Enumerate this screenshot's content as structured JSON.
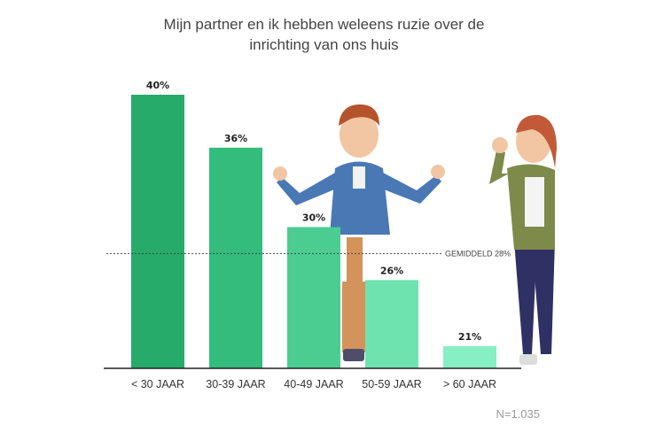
{
  "chart_data": {
    "type": "bar",
    "title_lines": [
      "Mijn partner en ik hebben weleens ruzie over de",
      "inrichting van ons huis"
    ],
    "categories": [
      "< 30 JAAR",
      "30-39 JAAR",
      "40-49 JAAR",
      "50-59 JAAR",
      "> 60 JAAR"
    ],
    "values": [
      40,
      36,
      30,
      26,
      21
    ],
    "value_labels": [
      "40%",
      "36%",
      "30%",
      "26%",
      "21%"
    ],
    "colors": [
      "#26ab6a",
      "#33bc7c",
      "#4bcd92",
      "#6ee3b0",
      "#86efc4"
    ],
    "ylim": [
      20,
      40
    ],
    "average": {
      "value": 28,
      "label": "GEMIDDELD 28%"
    },
    "grid": false,
    "legend": "none",
    "note": "N=1.035"
  }
}
